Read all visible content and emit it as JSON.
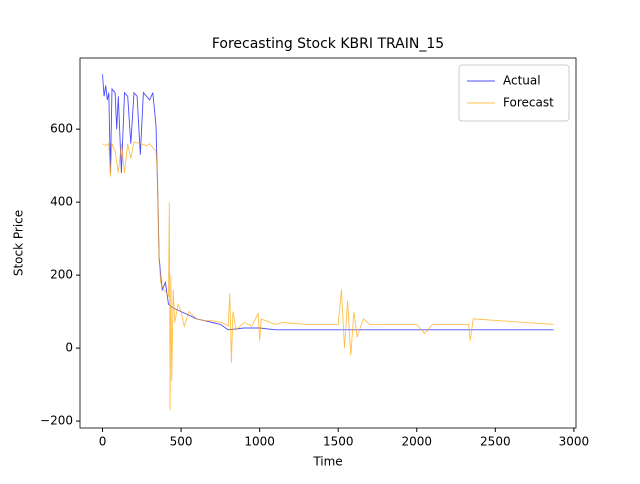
{
  "chart_data": {
    "type": "line",
    "title": "Forecasting Stock KBRI TRAIN_15",
    "xlabel": "Time",
    "ylabel": "Stock Price",
    "xlim": [
      -143.5,
      3013.5
    ],
    "ylim": [
      -219,
      795
    ],
    "xticks": [
      0,
      500,
      1000,
      1500,
      2000,
      2500,
      3000
    ],
    "yticks": [
      {
        "value": -200,
        "label": "−200"
      },
      0,
      200,
      400,
      600
    ],
    "legend": "upper right",
    "series": [
      {
        "name": "Actual",
        "color": "#0000ff",
        "x": [
          0,
          10,
          20,
          30,
          40,
          50,
          60,
          80,
          90,
          100,
          120,
          140,
          160,
          180,
          200,
          220,
          240,
          260,
          280,
          300,
          320,
          340,
          350,
          360,
          370,
          380,
          400,
          420,
          450,
          500,
          550,
          600,
          650,
          700,
          750,
          800,
          900,
          1000,
          1100,
          1200,
          1500,
          2000,
          2500,
          2870
        ],
        "values": [
          750,
          690,
          720,
          680,
          700,
          480,
          710,
          700,
          600,
          690,
          480,
          700,
          690,
          560,
          700,
          690,
          530,
          700,
          690,
          680,
          700,
          610,
          450,
          250,
          200,
          160,
          180,
          120,
          110,
          100,
          90,
          80,
          75,
          70,
          65,
          50,
          55,
          55,
          50,
          50,
          50,
          50,
          50,
          50
        ]
      },
      {
        "name": "Forecast",
        "color": "#ffa500",
        "x": [
          0,
          20,
          40,
          50,
          60,
          80,
          100,
          120,
          140,
          160,
          180,
          200,
          240,
          280,
          300,
          320,
          340,
          350,
          360,
          370,
          390,
          410,
          420,
          425,
          430,
          435,
          440,
          450,
          460,
          480,
          500,
          520,
          550,
          600,
          650,
          700,
          760,
          800,
          810,
          820,
          830,
          850,
          900,
          950,
          990,
          1000,
          1010,
          1100,
          1150,
          1300,
          1500,
          1520,
          1540,
          1560,
          1580,
          1600,
          1620,
          1660,
          1700,
          2000,
          2050,
          2100,
          2330,
          2340,
          2360,
          2870
        ],
        "values": [
          560,
          555,
          560,
          470,
          560,
          540,
          480,
          560,
          480,
          560,
          520,
          565,
          560,
          555,
          560,
          550,
          540,
          470,
          240,
          180,
          160,
          150,
          140,
          400,
          -170,
          200,
          -90,
          160,
          70,
          120,
          100,
          60,
          100,
          80,
          75,
          75,
          70,
          60,
          150,
          -40,
          100,
          50,
          70,
          60,
          95,
          20,
          80,
          65,
          70,
          65,
          65,
          160,
          0,
          130,
          -20,
          100,
          30,
          80,
          65,
          65,
          40,
          65,
          65,
          20,
          80,
          65
        ]
      }
    ]
  }
}
